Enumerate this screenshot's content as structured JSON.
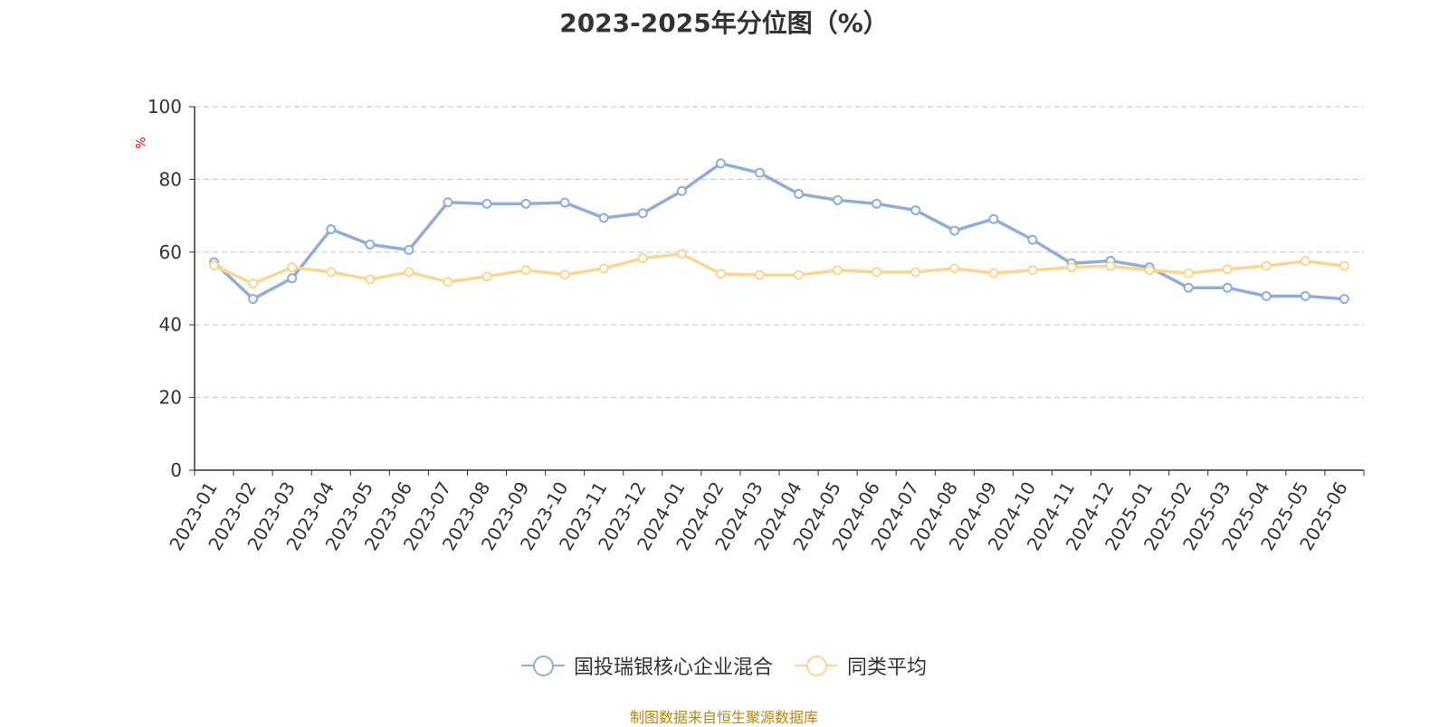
{
  "chart_data": {
    "type": "line",
    "title": "2023-2025年分位图（%）",
    "ylabel": "%",
    "xlabel": "",
    "ylim": [
      0,
      100
    ],
    "yticks": [
      0,
      20,
      40,
      60,
      80,
      100
    ],
    "grid": true,
    "legend_position": "bottom",
    "categories": [
      "2023-01",
      "2023-02",
      "2023-03",
      "2023-04",
      "2023-05",
      "2023-06",
      "2023-07",
      "2023-08",
      "2023-09",
      "2023-10",
      "2023-11",
      "2023-12",
      "2024-01",
      "2024-02",
      "2024-03",
      "2024-04",
      "2024-05",
      "2024-06",
      "2024-07",
      "2024-08",
      "2024-09",
      "2024-10",
      "2024-11",
      "2024-12",
      "2025-01",
      "2025-02",
      "2025-03",
      "2025-04",
      "2025-05",
      "2025-06"
    ],
    "series": [
      {
        "name": "国投瑞银核心企业混合",
        "color": "#8fadd6",
        "values": [
          57.2,
          47.1,
          52.8,
          66.3,
          62.1,
          60.6,
          73.7,
          73.3,
          73.3,
          73.6,
          69.4,
          70.7,
          76.8,
          84.4,
          81.8,
          76.0,
          74.3,
          73.3,
          71.5,
          65.9,
          69.1,
          63.4,
          56.9,
          57.6,
          55.8,
          50.2,
          50.2,
          47.9,
          47.9,
          47.1
        ]
      },
      {
        "name": "同类平均",
        "color": "#fcd592",
        "values": [
          56.3,
          51.3,
          55.8,
          54.5,
          52.5,
          54.5,
          51.8,
          53.3,
          55.0,
          53.8,
          55.5,
          58.3,
          59.5,
          54.0,
          53.7,
          53.7,
          55.0,
          54.5,
          54.5,
          55.5,
          54.2,
          55.0,
          55.8,
          56.2,
          55.0,
          54.2,
          55.3,
          56.2,
          57.5,
          56.2
        ]
      }
    ]
  },
  "source_text": "制图数据来自恒生聚源数据库"
}
